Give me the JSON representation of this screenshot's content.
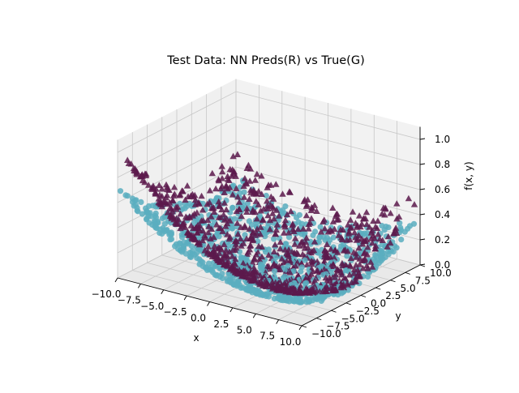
{
  "chart_data": {
    "type": "scatter3d",
    "title": "Test Data: NN Preds(R) vs True(G)",
    "xlabel": "x",
    "ylabel": "y",
    "zlabel": "f(x, y)",
    "xlim": [
      -10,
      10
    ],
    "ylim": [
      -10,
      10
    ],
    "zlim": [
      0,
      1
    ],
    "x_ticks": [
      "−10.0",
      "−7.5",
      "−5.0",
      "−2.5",
      "0.0",
      "2.5",
      "5.0",
      "7.5",
      "10.0"
    ],
    "y_ticks": [
      "−10.0",
      "−7.5",
      "−5.0",
      "−2.5",
      "0.0",
      "2.5",
      "5.0",
      "7.5",
      "10.0"
    ],
    "z_ticks": [
      "0.0",
      "0.2",
      "0.4",
      "0.6",
      "0.8",
      "1.0"
    ],
    "grid": true,
    "colors": {
      "predicted": "#5c1a4c",
      "true": "#5aaec0",
      "pane": "#f2f2f2",
      "grid": "#c8c8c8"
    },
    "series": [
      {
        "marker": "triangle",
        "color": "#5c1a4c",
        "surface": "f(x, y) ≈ 0.5·((x − 3)/13)² + 0.25·((x − 3)/13)·(y/10) + 0.3·(y/10)²",
        "points_sampled": 900
      },
      {
        "marker": "circle",
        "color": "#5aaec0",
        "surface": "f(x, y) ≈ 0.35·((x − 3)/13)² + 0.18·((x − 3)/13)·(y/10) + 0.18·(y/10)²",
        "points_sampled": 900
      }
    ]
  }
}
